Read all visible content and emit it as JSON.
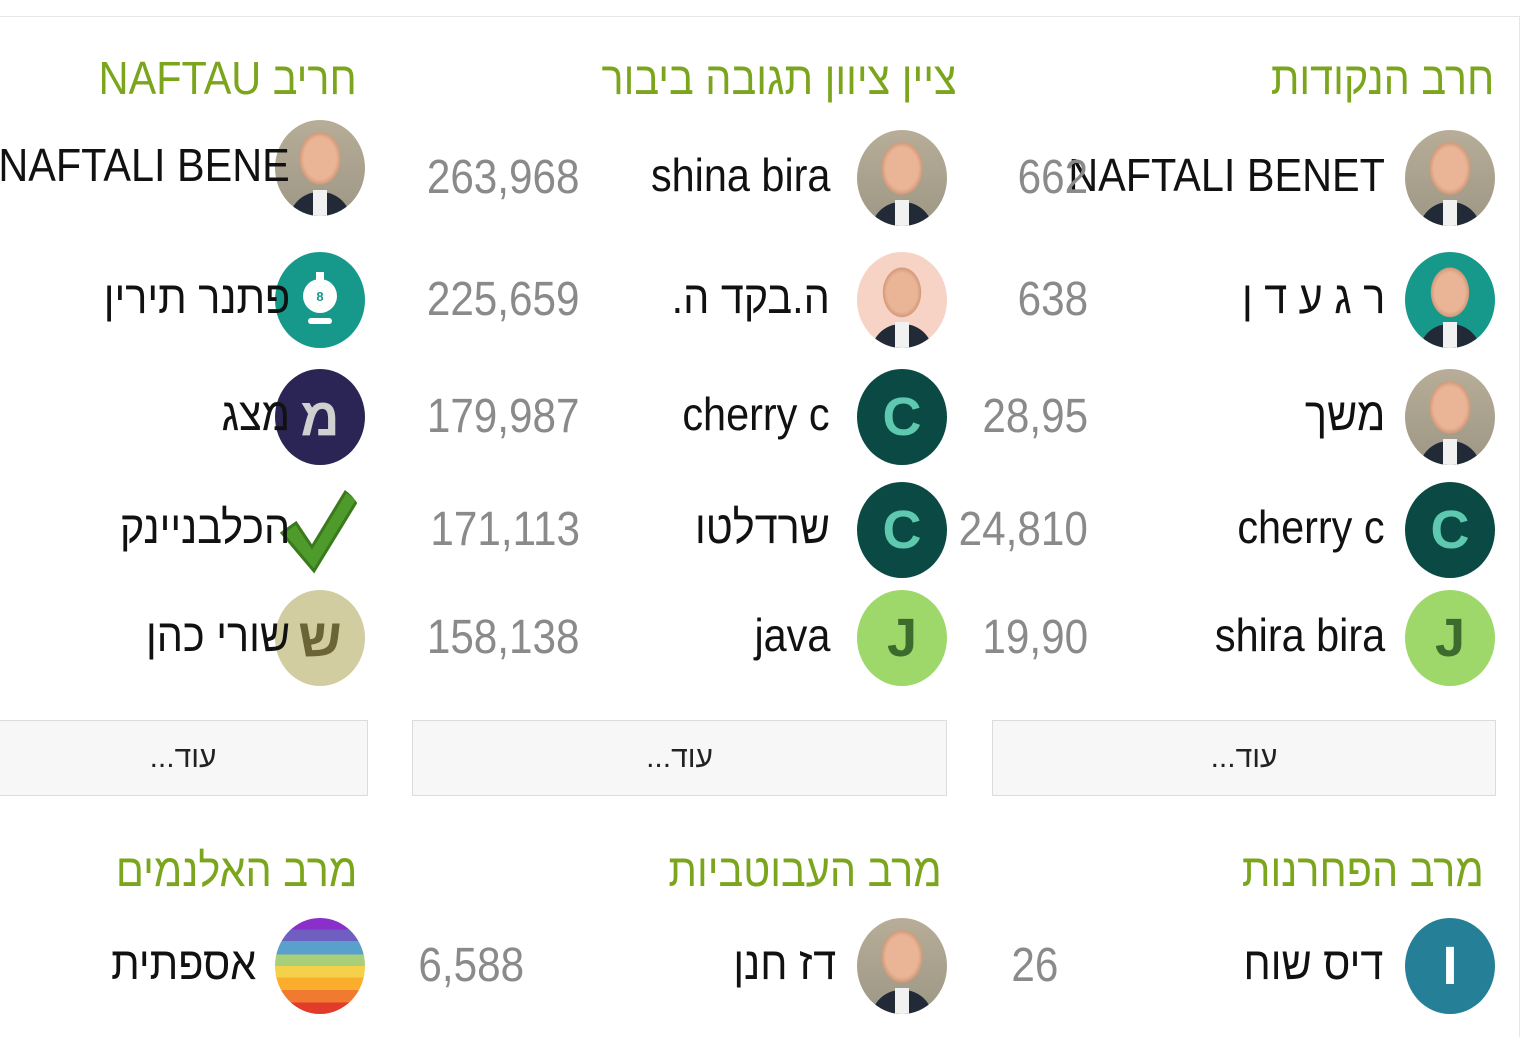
{
  "sections": [
    {
      "title": "חרב הנקודות",
      "more_label": "עוד...",
      "rows": [
        {
          "name": "NAFTALI BENET",
          "score": "662",
          "avatar": {
            "type": "photo"
          }
        },
        {
          "name": "ר ג ע ד ן",
          "score": "638",
          "avatar": {
            "type": "photo",
            "bg": "#16998a"
          }
        },
        {
          "name": "משך",
          "score": "28,95",
          "avatar": {
            "type": "photo"
          }
        },
        {
          "name": "cherry c",
          "score": "24,810",
          "avatar": {
            "type": "letter",
            "letter": "C",
            "bg": "#0b4a44",
            "fg": "#5fc9b0"
          }
        },
        {
          "name": "shira bira",
          "score": "19,90",
          "avatar": {
            "type": "letter",
            "letter": "J",
            "bg": "#9ed86a",
            "fg": "#3d6b2d"
          }
        }
      ]
    },
    {
      "title": "ציין ציוון תגובה ביבור",
      "more_label": "עוד...",
      "rows": [
        {
          "name": "shina bira",
          "score": "263,968",
          "avatar": {
            "type": "photo"
          }
        },
        {
          "name": "ה.בקד ה.",
          "score": "225,659",
          "avatar": {
            "type": "photo",
            "bg": "#f6d3c4"
          }
        },
        {
          "name": "cherry c",
          "score": "179,987",
          "avatar": {
            "type": "letter",
            "letter": "C",
            "bg": "#0b4a44",
            "fg": "#5fc9b0"
          }
        },
        {
          "name": "שרדלטו",
          "score": "171,113",
          "avatar": {
            "type": "letter",
            "letter": "C",
            "bg": "#0b4a44",
            "fg": "#5fc9b0"
          }
        },
        {
          "name": "java",
          "score": "158,138",
          "avatar": {
            "type": "letter",
            "letter": "J",
            "bg": "#9ed86a",
            "fg": "#3d6b2d"
          }
        }
      ]
    },
    {
      "title": "חריב NAFTAU",
      "more_label": "עוד...",
      "rows": [
        {
          "name": "NAFTALI BENE",
          "avatar": {
            "type": "photo"
          }
        },
        {
          "name": "פתנר תירין",
          "avatar": {
            "type": "icon",
            "icon": "robot-icon",
            "bg": "#16998a",
            "fg": "#ffffff"
          }
        },
        {
          "name": "מצג",
          "avatar": {
            "type": "letter",
            "letter": "מ",
            "bg": "#2a2554",
            "fg": "#d0d0d0"
          }
        },
        {
          "name": "הכלבניינק",
          "avatar": {
            "type": "icon",
            "icon": "checkmark-icon",
            "bg": "transparent",
            "fg": "#4e9a2a"
          }
        },
        {
          "name": "שורי כהן",
          "avatar": {
            "type": "letter",
            "letter": "ש",
            "bg": "#d1cda0",
            "fg": "#6b6436"
          }
        }
      ]
    },
    {
      "title": "מרב הפחרנות",
      "rows": [
        {
          "name": "דיס שוח",
          "score": "26",
          "avatar": {
            "type": "letter",
            "letter": "I",
            "bg": "#258097",
            "fg": "#ffffff"
          }
        }
      ]
    },
    {
      "title": "מרב העבוטביות",
      "rows": [
        {
          "name": "דז חנן",
          "score": "6,588",
          "avatar": {
            "type": "photo"
          }
        }
      ]
    },
    {
      "title": "מרב האלנמים",
      "rows": [
        {
          "name": "אספתית",
          "avatar": {
            "type": "icon",
            "icon": "rainbow-icon"
          }
        }
      ]
    }
  ]
}
